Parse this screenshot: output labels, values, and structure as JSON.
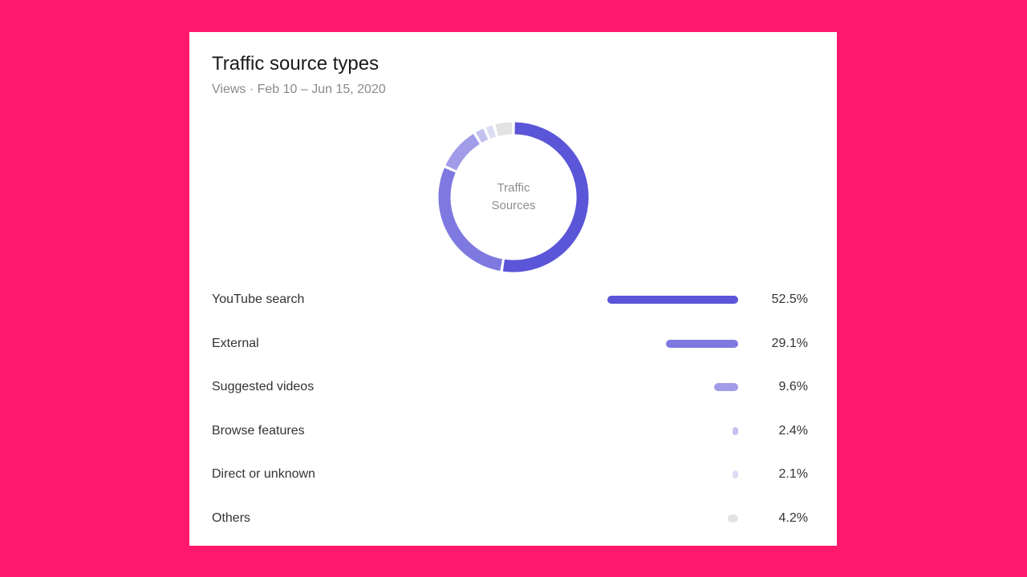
{
  "card": {
    "title": "Traffic source types",
    "subtitle": "Views · Feb 10 – Jun 15, 2020"
  },
  "donut": {
    "line1": "Traffic",
    "line2": "Sources"
  },
  "chart_data": {
    "type": "pie",
    "title": "Traffic source types",
    "subtitle": "Views · Feb 10 – Jun 15, 2020",
    "center_label": "Traffic Sources",
    "categories": [
      "YouTube search",
      "External",
      "Suggested videos",
      "Browse features",
      "Direct or unknown",
      "Others"
    ],
    "values": [
      52.5,
      29.1,
      9.6,
      2.4,
      2.1,
      4.2
    ],
    "value_labels": [
      "52.5%",
      "29.1%",
      "9.6%",
      "2.4%",
      "2.1%",
      "4.2%"
    ],
    "colors": [
      "#5b55d8",
      "#7e79e0",
      "#a09ce8",
      "#c3c1f0",
      "#dddcf5",
      "#e3e3e3"
    ],
    "unit": "%"
  }
}
